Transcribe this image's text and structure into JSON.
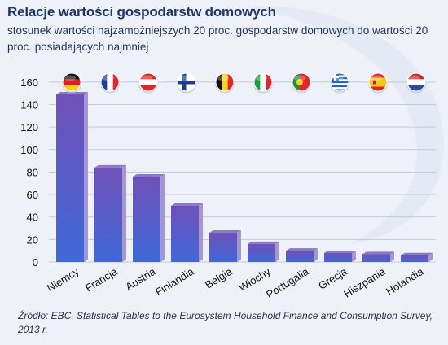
{
  "chart_data": {
    "type": "bar",
    "title": "Relacje wartości gospodarstw domowych",
    "subtitle": "stosunek wartości najzamożniejszych 20 proc. gospodarstw domowych do wartości 20 proc. posiadających najmniej",
    "categories": [
      "Niemcy",
      "Francja",
      "Austria",
      "Finlandia",
      "Belgia",
      "Włochy",
      "Portugalia",
      "Grecja",
      "Hiszpania",
      "Holandia"
    ],
    "values": [
      149,
      84,
      76,
      50,
      26,
      16,
      10,
      8,
      7,
      6
    ],
    "yticks": [
      "0",
      "20",
      "40",
      "60",
      "80",
      "100",
      "120",
      "140",
      "160"
    ],
    "ylim": [
      0,
      170
    ],
    "xlabel": "",
    "ylabel": "",
    "grid": true,
    "legend": "none",
    "flags": [
      "germany-flag-icon",
      "france-flag-icon",
      "austria-flag-icon",
      "finland-flag-icon",
      "belgium-flag-icon",
      "italy-flag-icon",
      "portugal-flag-icon",
      "greece-flag-icon",
      "spain-flag-icon",
      "netherlands-flag-icon"
    ],
    "colors": {
      "bar_top": "#7050b8",
      "bar_bottom": "#3f68d8",
      "bar_side": "#a596d2",
      "grid": "#c4cad6",
      "axis_text": "#111111"
    }
  },
  "source": "Źródło: EBC, Statistical Tables to the Eurosystem Household Finance and Consumption Survey, 2013 r."
}
